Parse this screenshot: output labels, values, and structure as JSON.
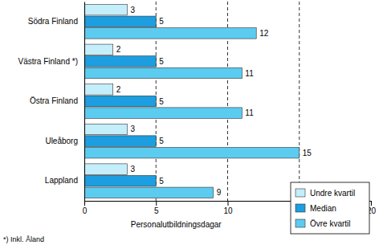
{
  "chart_data": {
    "type": "bar",
    "orientation": "horizontal",
    "categories": [
      "Södra Finland",
      "Västra Finland *)",
      "Östra Finland",
      "Uleåborg",
      "Lappland"
    ],
    "series": [
      {
        "name": "Undre kvartil",
        "color": "#c4eefa",
        "values": [
          3,
          2,
          2,
          3,
          3
        ]
      },
      {
        "name": "Median",
        "color": "#1c9ee0",
        "values": [
          5,
          5,
          5,
          5,
          5
        ]
      },
      {
        "name": "Övre kvartil",
        "color": "#5ccbf0",
        "values": [
          12,
          11,
          11,
          15,
          9
        ]
      }
    ],
    "x_label": "Personalutbildningsdagar",
    "footnote": "*) Inkl. Åland",
    "xlim": [
      0,
      20
    ],
    "xticks": [
      0,
      5,
      10,
      15,
      20
    ],
    "grid": true,
    "legend": "lower right",
    "data_labels": true
  }
}
